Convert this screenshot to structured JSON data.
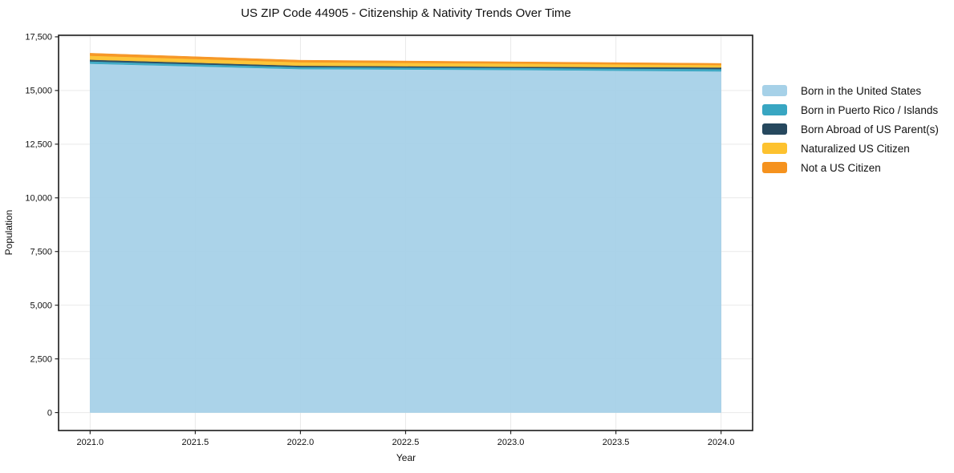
{
  "page": {
    "title": "US ZIP Code 44905 - Citizenship & Nativity Trends Over Time"
  },
  "chart_data": {
    "type": "area",
    "stacked": true,
    "title": "US ZIP Code 44905 - Citizenship & Nativity Trends Over Time",
    "xlabel": "Year",
    "ylabel": "Population",
    "x": [
      2021,
      2022,
      2023,
      2024
    ],
    "series": [
      {
        "name": "Born in the United States",
        "color": "#a6d1e8",
        "values": [
          16250,
          16000,
          15960,
          15890
        ]
      },
      {
        "name": "Born in Puerto Rico / Islands",
        "color": "#38a6c2",
        "values": [
          110,
          95,
          95,
          110
        ]
      },
      {
        "name": "Born Abroad of US Parent(s)",
        "color": "#26485e",
        "values": [
          75,
          60,
          55,
          75
        ]
      },
      {
        "name": "Naturalized US Citizen",
        "color": "#fdc22f",
        "values": [
          190,
          165,
          150,
          110
        ]
      },
      {
        "name": "Not a US Citizen",
        "color": "#f5921e",
        "values": [
          110,
          90,
          75,
          75
        ]
      }
    ],
    "totals": [
      16735,
      16410,
      16335,
      16260
    ],
    "x_ticks": [
      {
        "value": 2021.0,
        "label": "2021.0"
      },
      {
        "value": 2021.5,
        "label": "2021.5"
      },
      {
        "value": 2022.0,
        "label": "2022.0"
      },
      {
        "value": 2022.5,
        "label": "2022.5"
      },
      {
        "value": 2023.0,
        "label": "2023.0"
      },
      {
        "value": 2023.5,
        "label": "2023.5"
      },
      {
        "value": 2024.0,
        "label": "2024.0"
      }
    ],
    "y_ticks": [
      {
        "value": 0,
        "label": "0"
      },
      {
        "value": 2500,
        "label": "2,500"
      },
      {
        "value": 5000,
        "label": "5,000"
      },
      {
        "value": 7500,
        "label": "7,500"
      },
      {
        "value": 10000,
        "label": "10,000"
      },
      {
        "value": 12500,
        "label": "12,500"
      },
      {
        "value": 15000,
        "label": "15,000"
      },
      {
        "value": 17500,
        "label": "17,500"
      }
    ],
    "x_range": [
      2020.85,
      2024.15
    ],
    "y_range": [
      -837,
      17572
    ],
    "grid": true,
    "legend_position": "right-outside"
  },
  "colors": {
    "frame": "#1a1a1a",
    "grid": "#e9e9e9",
    "tick": "#262626",
    "text": "#111111",
    "background": "#ffffff"
  }
}
